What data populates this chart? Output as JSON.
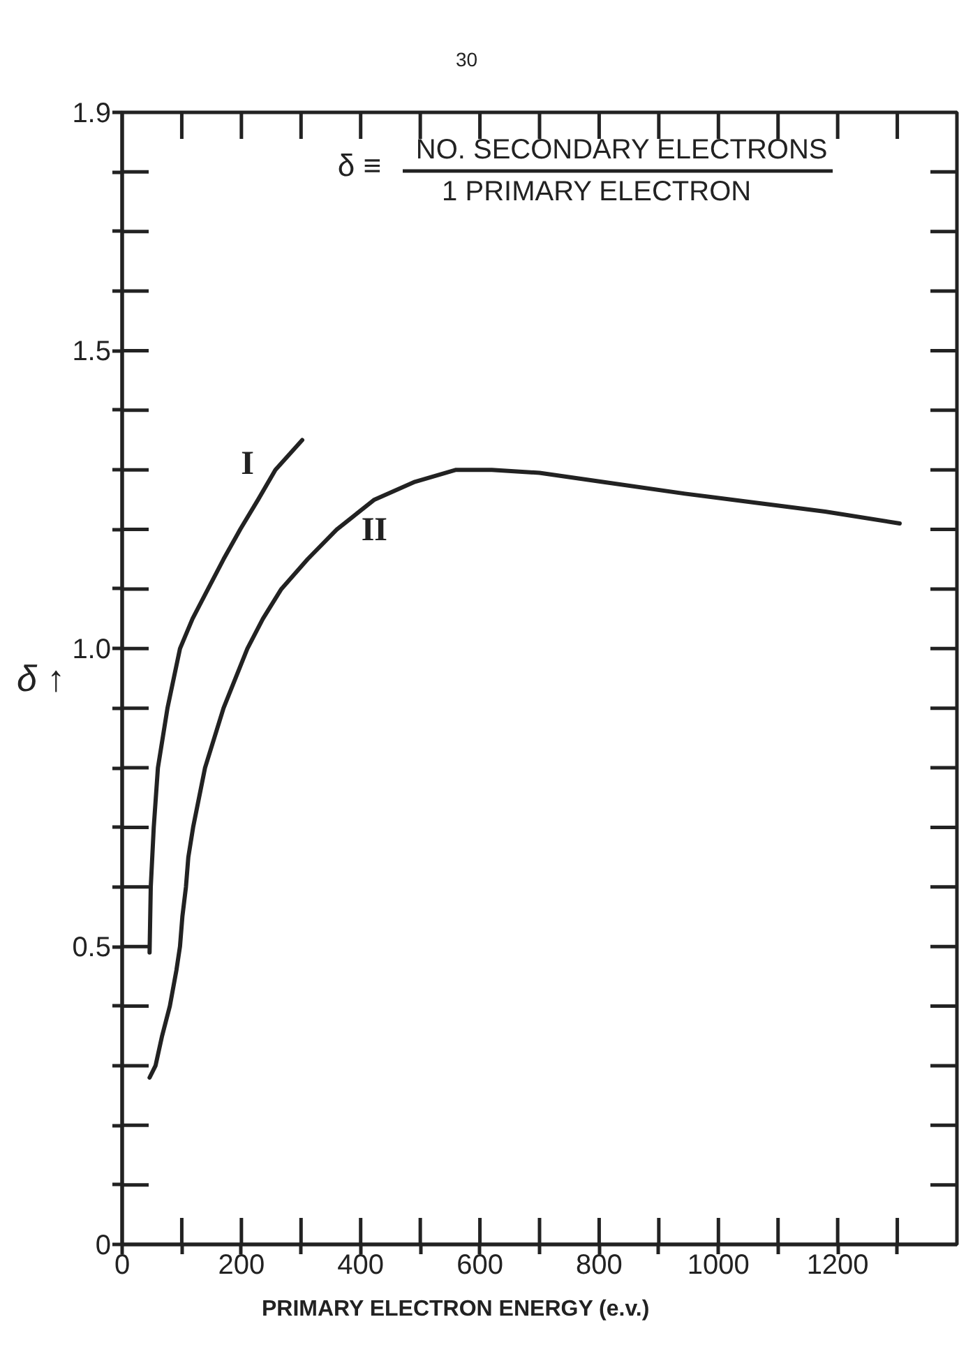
{
  "chart_data": {
    "type": "line",
    "annotations": [
      "30",
      "δ ≡",
      "NO. SECONDARY ELECTRONS",
      "1 PRIMARY ELECTRON"
    ],
    "xlabel": "PRIMARY ELECTRON ENERGY (e.v.)",
    "ylabel": "δ ↑",
    "xlim": [
      0,
      1400
    ],
    "ylim": [
      0,
      1.9
    ],
    "xticks": [
      0,
      {
        "value": 100,
        "label": null
      },
      200,
      {
        "value": 300,
        "label": null
      },
      400,
      {
        "value": 500,
        "label": null
      },
      600,
      {
        "value": 700,
        "label": null
      },
      800,
      {
        "value": 900,
        "label": null
      },
      1000,
      {
        "value": 1100,
        "label": null
      },
      1200,
      {
        "value": 1300,
        "label": null
      }
    ],
    "yticks": [
      0,
      {
        "value": 0.1,
        "label": null
      },
      {
        "value": 0.2,
        "label": null
      },
      {
        "value": 0.3,
        "label": null
      },
      {
        "value": 0.4,
        "label": null
      },
      0.5,
      {
        "value": 0.6,
        "label": null
      },
      {
        "value": 0.7,
        "label": null
      },
      {
        "value": 0.8,
        "label": null
      },
      {
        "value": 0.9,
        "label": null
      },
      {
        "value": 1,
        "label": "1.0"
      },
      {
        "value": 1.1,
        "label": null
      },
      {
        "value": 1.2,
        "label": null
      },
      {
        "value": 1.3,
        "label": null
      },
      {
        "value": 1.4,
        "label": null
      },
      1.5,
      {
        "value": 1.6,
        "label": null
      },
      {
        "value": 1.7,
        "label": null
      },
      {
        "value": 1.8,
        "label": null
      },
      1.9
    ],
    "line_style": "solid",
    "series": [
      {
        "name": "I",
        "color": "#222222",
        "x": [
          46,
          48,
          53,
          60,
          76,
          97,
          118,
          144,
          170,
          198,
          228,
          257,
          302
        ],
        "values": [
          0.49,
          0.6,
          0.7,
          0.8,
          0.9,
          1.0,
          1.05,
          1.1,
          1.15,
          1.2,
          1.25,
          1.3,
          1.35
        ]
      },
      {
        "name": "II",
        "color": "#222222",
        "x": [
          46,
          56,
          67,
          80,
          91,
          97,
          101,
          107,
          111,
          119,
          139,
          170,
          210,
          236,
          267,
          311,
          360,
          423,
          491,
          560,
          620,
          700,
          804,
          944,
          1062,
          1179,
          1304
        ],
        "values": [
          0.28,
          0.3,
          0.35,
          0.4,
          0.46,
          0.5,
          0.55,
          0.6,
          0.65,
          0.7,
          0.8,
          0.9,
          1.0,
          1.05,
          1.1,
          1.15,
          1.2,
          1.25,
          1.28,
          1.3,
          1.3,
          1.295,
          1.28,
          1.26,
          1.245,
          1.23,
          1.21
        ]
      }
    ]
  }
}
